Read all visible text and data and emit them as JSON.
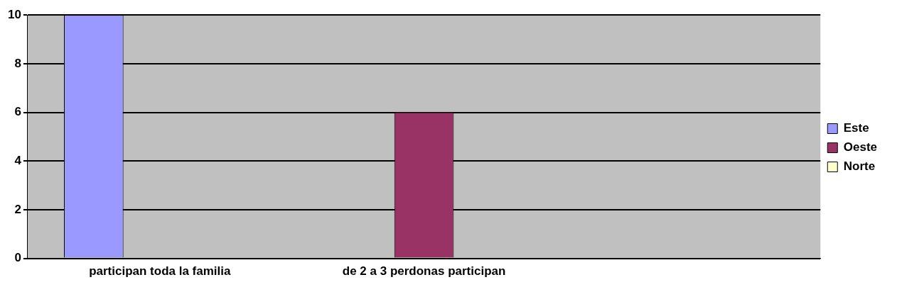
{
  "chart_data": {
    "type": "bar",
    "categories": [
      "participan toda la familia",
      "de 2 a 3 perdonas participan",
      null
    ],
    "series": [
      {
        "name": "Este",
        "color": "#9999ff",
        "values": [
          10,
          null,
          null
        ]
      },
      {
        "name": "Oeste",
        "color": "#993366",
        "values": [
          null,
          6,
          null
        ]
      },
      {
        "name": "Norte",
        "color": "#ffffcc",
        "values": [
          null,
          null,
          null
        ]
      }
    ],
    "ylim": [
      0,
      10
    ],
    "yticks": [
      0,
      2,
      4,
      6,
      8,
      10
    ],
    "grid": "y",
    "legend": "right"
  }
}
